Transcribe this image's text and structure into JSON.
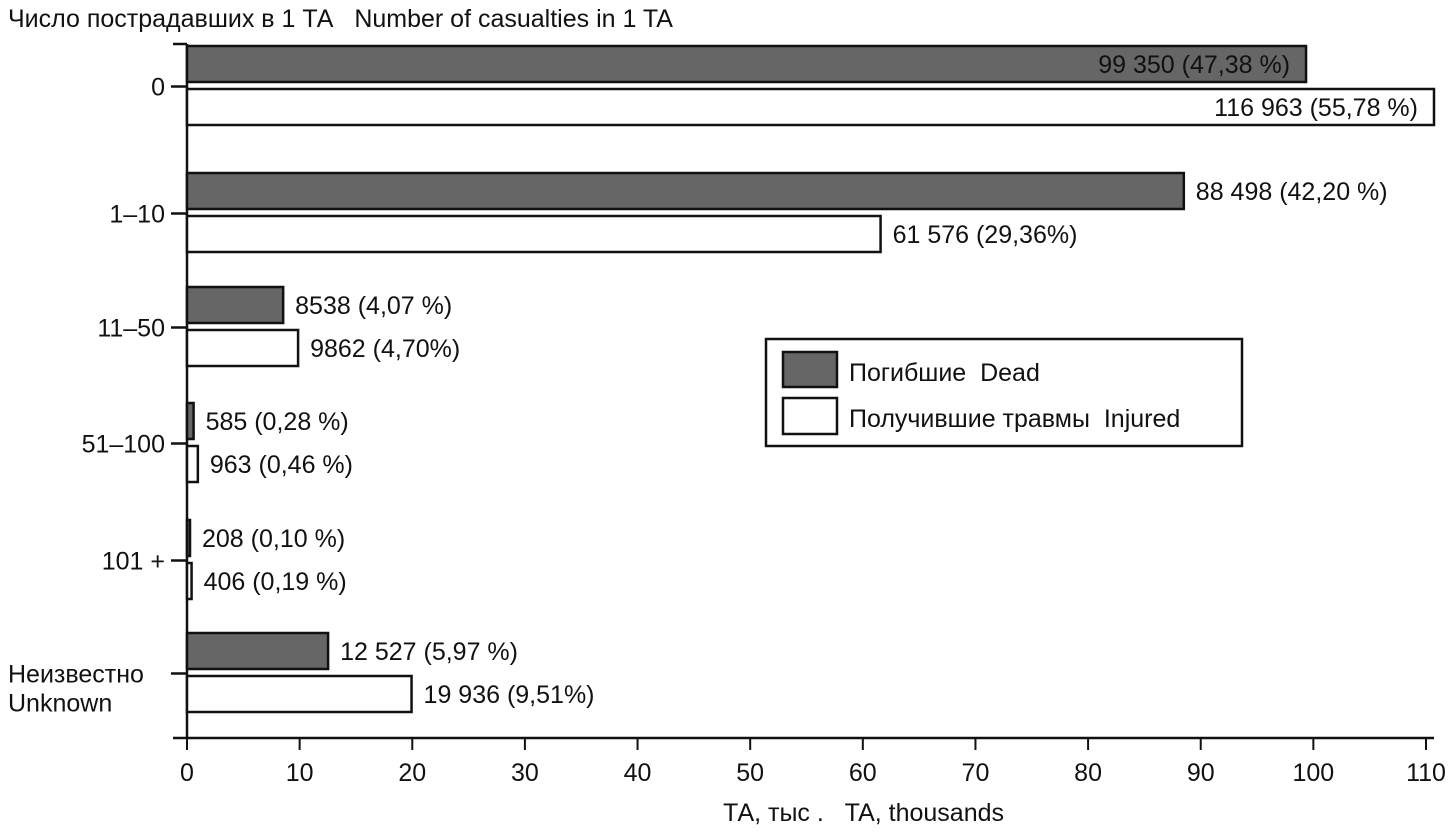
{
  "chart_data": {
    "type": "bar",
    "orientation": "horizontal",
    "title": "Число пострадавших в 1 ТА   Number of casualties in 1 TA",
    "xlabel": "ТА, тыс .   TA, thousands",
    "ylabel": "Число пострадавших в 1 ТА   Number of casualties in 1 TA",
    "xlim": [
      0,
      110
    ],
    "xticks": [
      0,
      10,
      20,
      30,
      40,
      50,
      60,
      70,
      80,
      90,
      100,
      110
    ],
    "grid": false,
    "legend_position": "center-right",
    "categories": [
      "0",
      "1–10",
      "11–50",
      "51–100",
      "101+",
      "Неизвестно\nUnknown"
    ],
    "category_lines": [
      [
        "0"
      ],
      [
        "1–10"
      ],
      [
        "11–50"
      ],
      [
        "51–100"
      ],
      [
        "101 +"
      ],
      [
        "Неизвестно",
        "Unknown"
      ]
    ],
    "series": [
      {
        "name": "Погибшие Dead",
        "color": "#666666",
        "values": [
          99.35,
          88.498,
          8.538,
          0.585,
          0.208,
          12.527
        ],
        "labels": [
          "99 350 (47,38 %)",
          "88 498 (42,20 %)",
          "8538 (4,07 %)",
          "585 (0,28 %)",
          "208 (0,10 %)",
          "12 527 (5,97 %)"
        ]
      },
      {
        "name": "Получившие травмы Injured",
        "color": "#ffffff",
        "values": [
          116.963,
          61.576,
          9.862,
          0.963,
          0.406,
          19.936
        ],
        "labels": [
          "116 963 (55,78 %)",
          "61 576 (29,36%)",
          "9862 (4,70%)",
          "963 (0,46 %)",
          "406 (0,19 %)",
          "19 936 (9,51%)"
        ]
      }
    ]
  },
  "legend": {
    "items": [
      {
        "label": "Погибшие  Dead",
        "color": "#666666"
      },
      {
        "label": "Получившие травмы  Injured",
        "color": "#ffffff"
      }
    ]
  }
}
